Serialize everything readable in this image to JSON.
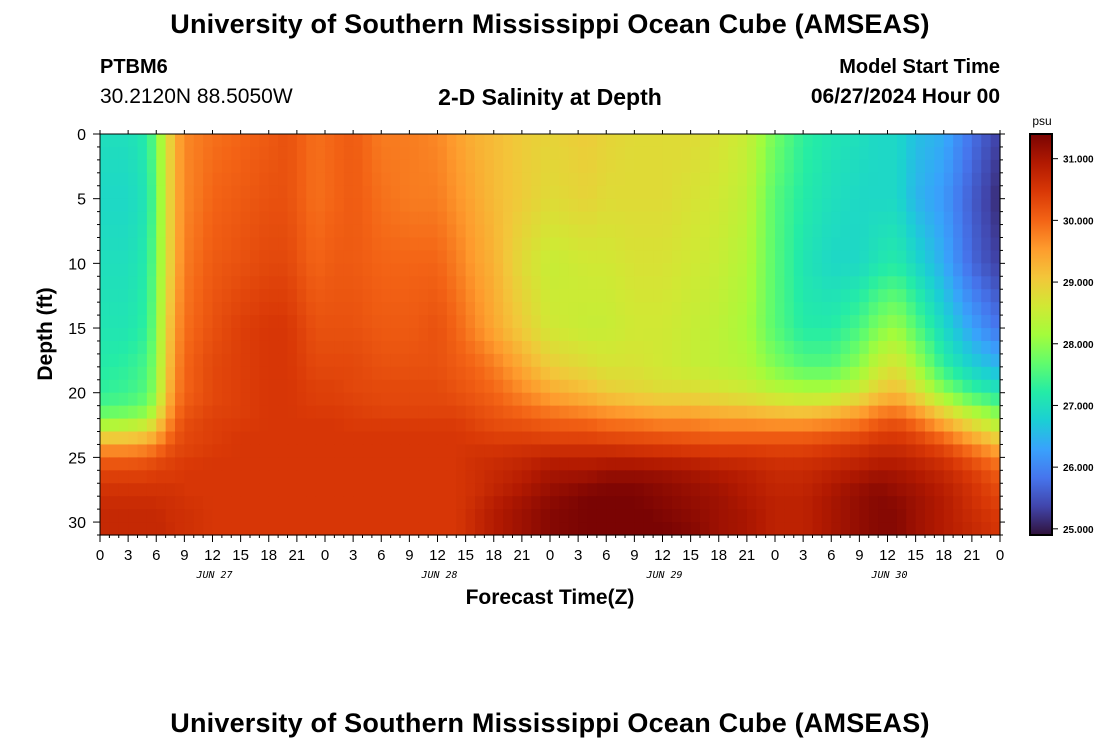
{
  "header": {
    "title": "University of Southern Mississippi Ocean Cube (AMSEAS)",
    "station_id": "PTBM6",
    "station_coords": "30.2120N  88.5050W",
    "plot_title": "2-D Salinity at Depth",
    "model_start_label": "Model Start Time",
    "model_start_value": "06/27/2024 Hour 00"
  },
  "footer": {
    "title": "University of Southern Mississippi Ocean Cube (AMSEAS)"
  },
  "chart_data": {
    "type": "heatmap",
    "title": "2-D Salinity at Depth",
    "xlabel": "Forecast Time(Z)",
    "ylabel": "Depth (ft)",
    "x_hours_range": [
      0,
      96
    ],
    "x_tick_labels": [
      "0",
      "3",
      "6",
      "9",
      "12",
      "15",
      "18",
      "21",
      "0",
      "3",
      "6",
      "9",
      "12",
      "15",
      "18",
      "21",
      "0",
      "3",
      "6",
      "9",
      "12",
      "15",
      "18",
      "21",
      "0",
      "3",
      "6",
      "9",
      "12",
      "15",
      "18",
      "21",
      "0"
    ],
    "day_labels": [
      {
        "hour": 12,
        "label": "JUN 27"
      },
      {
        "hour": 36,
        "label": "JUN 28"
      },
      {
        "hour": 60,
        "label": "JUN 29"
      },
      {
        "hour": 84,
        "label": "JUN 30"
      }
    ],
    "ylim": [
      0,
      31
    ],
    "y_ticks": [
      0,
      5,
      10,
      15,
      20,
      25,
      30
    ],
    "colorbar": {
      "unit": "psu",
      "range": [
        24.9,
        31.4
      ],
      "ticks": [
        25.0,
        26.0,
        27.0,
        28.0,
        29.0,
        30.0,
        31.0
      ],
      "tick_labels": [
        "25.000",
        "26.000",
        "27.000",
        "28.000",
        "29.000",
        "30.000",
        "31.000"
      ],
      "colormap": [
        "#30123b",
        "#4145ab",
        "#4675ed",
        "#39a2fc",
        "#1bcfd4",
        "#24eca6",
        "#61fc6c",
        "#a4fc3b",
        "#d1e834",
        "#f3c63a",
        "#fe9b2d",
        "#f36315",
        "#d93806",
        "#b11901",
        "#7a0403"
      ]
    },
    "depths_ft": [
      0,
      5,
      10,
      15,
      18,
      20,
      21,
      22,
      23,
      24,
      25,
      26,
      27,
      28,
      29,
      30,
      31
    ],
    "times_h": [
      0,
      3,
      5,
      6,
      7,
      8,
      9,
      12,
      15,
      18,
      20,
      23,
      25,
      27,
      30,
      33,
      36,
      38,
      40,
      42,
      45,
      48,
      52,
      54,
      57,
      60,
      63,
      66,
      69,
      72,
      75,
      78,
      81,
      83,
      85,
      87,
      90,
      93,
      96
    ],
    "salinity_psu": [
      [
        27.0,
        27.0,
        27.2,
        27.8,
        28.6,
        29.3,
        29.7,
        29.9,
        30.0,
        30.1,
        30.2,
        29.9,
        30.0,
        30.1,
        29.8,
        29.8,
        29.7,
        29.5,
        29.3,
        29.2,
        29.0,
        28.9,
        29.0,
        28.9,
        28.8,
        28.8,
        28.8,
        28.7,
        28.5,
        27.8,
        27.3,
        27.1,
        27.0,
        26.9,
        26.9,
        26.6,
        26.4,
        25.8,
        25.3
      ],
      [
        26.9,
        26.9,
        27.1,
        27.7,
        28.6,
        29.3,
        29.7,
        30.0,
        30.1,
        30.2,
        30.2,
        29.9,
        30.0,
        30.1,
        29.9,
        29.8,
        29.8,
        29.6,
        29.4,
        29.2,
        29.0,
        28.8,
        28.9,
        28.8,
        28.8,
        28.8,
        28.7,
        28.6,
        28.4,
        27.6,
        27.2,
        27.0,
        26.9,
        26.9,
        26.9,
        26.5,
        26.2,
        25.6,
        25.1
      ],
      [
        27.0,
        27.0,
        27.2,
        27.8,
        28.6,
        29.3,
        29.8,
        30.1,
        30.2,
        30.3,
        30.3,
        30.0,
        30.1,
        30.1,
        30.0,
        30.0,
        30.0,
        29.8,
        29.5,
        29.3,
        28.8,
        28.5,
        28.6,
        28.6,
        28.7,
        28.7,
        28.6,
        28.5,
        28.3,
        27.6,
        27.1,
        26.9,
        26.9,
        27.1,
        27.2,
        26.9,
        26.4,
        25.7,
        25.3
      ],
      [
        27.1,
        27.1,
        27.3,
        27.9,
        28.8,
        29.5,
        29.9,
        30.2,
        30.4,
        30.5,
        30.5,
        30.2,
        30.2,
        30.2,
        30.1,
        30.1,
        30.2,
        30.0,
        29.7,
        29.4,
        29.0,
        28.6,
        28.5,
        28.5,
        28.6,
        28.6,
        28.5,
        28.4,
        28.2,
        27.6,
        27.2,
        27.2,
        27.5,
        27.9,
        28.1,
        27.6,
        26.9,
        26.3,
        25.8
      ],
      [
        27.2,
        27.3,
        27.5,
        28.0,
        28.9,
        29.6,
        30.0,
        30.3,
        30.4,
        30.5,
        30.5,
        30.3,
        30.3,
        30.3,
        30.2,
        30.2,
        30.2,
        30.1,
        30.0,
        29.8,
        29.4,
        29.0,
        28.8,
        28.7,
        28.7,
        28.6,
        28.5,
        28.4,
        28.3,
        27.9,
        27.6,
        27.6,
        28.0,
        28.5,
        28.7,
        28.2,
        27.3,
        26.8,
        26.5
      ],
      [
        27.3,
        27.4,
        27.6,
        28.1,
        29.0,
        29.7,
        30.0,
        30.3,
        30.4,
        30.5,
        30.5,
        30.4,
        30.4,
        30.3,
        30.3,
        30.3,
        30.3,
        30.2,
        30.1,
        30.0,
        29.7,
        29.4,
        29.2,
        29.0,
        28.9,
        28.8,
        28.8,
        28.7,
        28.6,
        28.4,
        28.3,
        28.3,
        28.6,
        29.0,
        29.2,
        28.8,
        28.0,
        27.4,
        27.1
      ],
      [
        27.5,
        27.6,
        27.8,
        28.3,
        29.2,
        29.8,
        30.1,
        30.3,
        30.4,
        30.5,
        30.5,
        30.4,
        30.4,
        30.4,
        30.3,
        30.3,
        30.3,
        30.3,
        30.2,
        30.1,
        29.9,
        29.7,
        29.5,
        29.4,
        29.3,
        29.2,
        29.2,
        29.1,
        29.0,
        28.9,
        28.8,
        28.9,
        29.2,
        29.5,
        29.6,
        29.3,
        28.6,
        28.0,
        27.6
      ],
      [
        27.9,
        28.0,
        28.2,
        28.7,
        29.4,
        29.9,
        30.2,
        30.4,
        30.4,
        30.5,
        30.5,
        30.5,
        30.5,
        30.4,
        30.4,
        30.4,
        30.4,
        30.4,
        30.3,
        30.2,
        30.1,
        30.0,
        29.9,
        29.8,
        29.7,
        29.6,
        29.6,
        29.5,
        29.5,
        29.4,
        29.4,
        29.5,
        29.7,
        30.0,
        30.1,
        29.8,
        29.2,
        28.6,
        28.1
      ],
      [
        28.6,
        28.7,
        28.9,
        29.2,
        29.7,
        30.1,
        30.3,
        30.4,
        30.5,
        30.5,
        30.5,
        30.5,
        30.5,
        30.5,
        30.5,
        30.5,
        30.5,
        30.5,
        30.4,
        30.3,
        30.3,
        30.2,
        30.2,
        30.1,
        30.1,
        30.0,
        30.0,
        29.9,
        29.9,
        29.9,
        29.9,
        30.0,
        30.1,
        30.3,
        30.4,
        30.2,
        29.7,
        29.1,
        28.6
      ],
      [
        29.4,
        29.4,
        29.5,
        29.7,
        30.0,
        30.2,
        30.3,
        30.4,
        30.5,
        30.5,
        30.5,
        30.5,
        30.5,
        30.5,
        30.5,
        30.5,
        30.5,
        30.5,
        30.5,
        30.5,
        30.5,
        30.5,
        30.5,
        30.5,
        30.4,
        30.4,
        30.3,
        30.3,
        30.3,
        30.3,
        30.3,
        30.4,
        30.5,
        30.6,
        30.6,
        30.5,
        30.2,
        29.7,
        29.2
      ],
      [
        30.0,
        30.0,
        30.1,
        30.2,
        30.3,
        30.4,
        30.4,
        30.5,
        30.5,
        30.5,
        30.5,
        30.5,
        30.5,
        30.5,
        30.5,
        30.5,
        30.5,
        30.5,
        30.6,
        30.6,
        30.7,
        30.8,
        30.8,
        30.8,
        30.8,
        30.7,
        30.7,
        30.6,
        30.6,
        30.5,
        30.5,
        30.6,
        30.7,
        30.8,
        30.8,
        30.7,
        30.5,
        30.1,
        29.7
      ],
      [
        30.3,
        30.3,
        30.3,
        30.4,
        30.4,
        30.4,
        30.5,
        30.5,
        30.5,
        30.5,
        30.5,
        30.5,
        30.5,
        30.5,
        30.5,
        30.5,
        30.5,
        30.5,
        30.6,
        30.7,
        30.8,
        31.0,
        31.0,
        31.1,
        31.1,
        31.1,
        31.0,
        30.9,
        30.8,
        30.7,
        30.7,
        30.8,
        30.9,
        31.0,
        31.0,
        30.9,
        30.7,
        30.4,
        30.0
      ],
      [
        30.5,
        30.5,
        30.5,
        30.5,
        30.5,
        30.5,
        30.5,
        30.5,
        30.5,
        30.5,
        30.5,
        30.5,
        30.5,
        30.5,
        30.5,
        30.5,
        30.5,
        30.5,
        30.6,
        30.7,
        30.9,
        31.1,
        31.2,
        31.3,
        31.3,
        31.2,
        31.1,
        31.0,
        30.9,
        30.7,
        30.7,
        30.9,
        31.1,
        31.2,
        31.1,
        31.0,
        30.8,
        30.5,
        30.2
      ],
      [
        30.6,
        30.6,
        30.6,
        30.6,
        30.6,
        30.6,
        30.5,
        30.5,
        30.5,
        30.5,
        30.5,
        30.5,
        30.5,
        30.5,
        30.5,
        30.5,
        30.5,
        30.5,
        30.6,
        30.8,
        31.0,
        31.2,
        31.4,
        31.4,
        31.4,
        31.3,
        31.2,
        31.1,
        30.9,
        30.8,
        30.8,
        31.0,
        31.2,
        31.3,
        31.2,
        31.1,
        30.9,
        30.6,
        30.3
      ],
      [
        30.7,
        30.7,
        30.7,
        30.7,
        30.6,
        30.6,
        30.6,
        30.5,
        30.5,
        30.5,
        30.5,
        30.5,
        30.5,
        30.5,
        30.5,
        30.5,
        30.5,
        30.5,
        30.7,
        30.9,
        31.1,
        31.3,
        31.4,
        31.5,
        31.4,
        31.3,
        31.2,
        31.1,
        31.0,
        30.8,
        30.8,
        31.0,
        31.2,
        31.3,
        31.3,
        31.1,
        30.9,
        30.6,
        30.4
      ],
      [
        30.7,
        30.7,
        30.7,
        30.7,
        30.7,
        30.6,
        30.6,
        30.5,
        30.5,
        30.5,
        30.5,
        30.5,
        30.5,
        30.5,
        30.5,
        30.5,
        30.5,
        30.5,
        30.7,
        30.9,
        31.1,
        31.3,
        31.4,
        31.5,
        31.5,
        31.4,
        31.3,
        31.1,
        31.0,
        30.8,
        30.8,
        31.0,
        31.2,
        31.3,
        31.3,
        31.1,
        30.9,
        30.7,
        30.5
      ],
      [
        30.7,
        30.7,
        30.7,
        30.7,
        30.7,
        30.6,
        30.6,
        30.5,
        30.5,
        30.5,
        30.5,
        30.5,
        30.5,
        30.5,
        30.5,
        30.5,
        30.5,
        30.5,
        30.7,
        30.9,
        31.1,
        31.3,
        31.4,
        31.5,
        31.5,
        31.4,
        31.3,
        31.1,
        31.0,
        30.8,
        30.8,
        31.0,
        31.2,
        31.3,
        31.3,
        31.1,
        30.9,
        30.7,
        30.5
      ]
    ]
  }
}
